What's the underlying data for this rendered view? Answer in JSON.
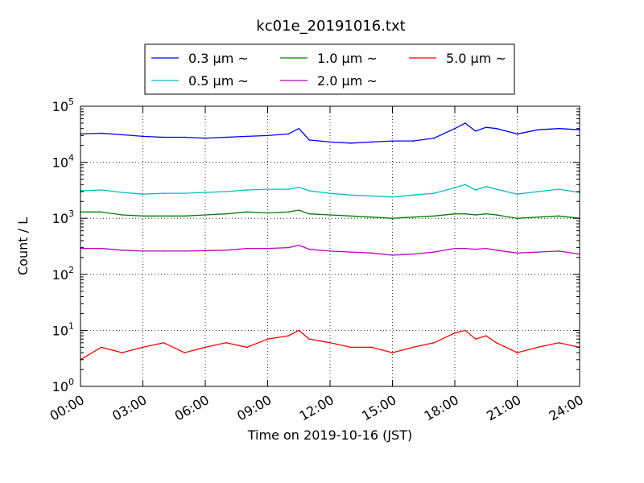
{
  "chart_data": {
    "type": "line",
    "title": "kc01e_20191016.txt",
    "xlabel": "Time on 2019-10-16 (JST)",
    "ylabel": "Count / L",
    "yscale": "log",
    "xlim": [
      "00:00",
      "24:00"
    ],
    "ylim": [
      1,
      100000
    ],
    "x_ticks": [
      "00:00",
      "03:00",
      "06:00",
      "09:00",
      "12:00",
      "15:00",
      "18:00",
      "21:00",
      "24:00"
    ],
    "y_ticks": [
      {
        "base": "10",
        "exp": "0"
      },
      {
        "base": "10",
        "exp": "1"
      },
      {
        "base": "10",
        "exp": "2"
      },
      {
        "base": "10",
        "exp": "3"
      },
      {
        "base": "10",
        "exp": "4"
      },
      {
        "base": "10",
        "exp": "5"
      }
    ],
    "grid": true,
    "legend_position": "top-center",
    "x": [
      "00:00",
      "01:00",
      "02:00",
      "03:00",
      "04:00",
      "05:00",
      "06:00",
      "07:00",
      "08:00",
      "09:00",
      "10:00",
      "10:30",
      "11:00",
      "12:00",
      "13:00",
      "14:00",
      "15:00",
      "16:00",
      "17:00",
      "18:00",
      "18:30",
      "19:00",
      "19:30",
      "20:00",
      "21:00",
      "22:00",
      "23:00",
      "24:00"
    ],
    "series": [
      {
        "name": "0.3 μm ~",
        "color": "#0000ff",
        "values": [
          32000,
          33000,
          31000,
          29000,
          28000,
          28000,
          27000,
          28000,
          29000,
          30000,
          32000,
          40000,
          25000,
          23000,
          22000,
          23000,
          24000,
          24000,
          27000,
          40000,
          50000,
          36000,
          42000,
          40000,
          32000,
          38000,
          40000,
          38000
        ]
      },
      {
        "name": "0.5 μm ~",
        "color": "#00bfbf",
        "values": [
          3100,
          3200,
          2900,
          2700,
          2800,
          2800,
          2900,
          3000,
          3200,
          3300,
          3300,
          3600,
          3100,
          2800,
          2600,
          2500,
          2400,
          2600,
          2800,
          3500,
          4000,
          3200,
          3700,
          3300,
          2700,
          3000,
          3300,
          2900
        ]
      },
      {
        "name": "1.0 μm ~",
        "color": "#008000",
        "values": [
          1300,
          1300,
          1150,
          1100,
          1100,
          1100,
          1150,
          1200,
          1300,
          1250,
          1300,
          1400,
          1200,
          1150,
          1100,
          1050,
          1000,
          1050,
          1100,
          1200,
          1200,
          1150,
          1200,
          1150,
          1000,
          1050,
          1100,
          1000
        ]
      },
      {
        "name": "2.0 μm ~",
        "color": "#bf00bf",
        "values": [
          290,
          290,
          270,
          260,
          260,
          260,
          265,
          270,
          290,
          290,
          300,
          330,
          280,
          260,
          250,
          240,
          220,
          230,
          250,
          290,
          290,
          280,
          290,
          270,
          240,
          250,
          260,
          230
        ]
      },
      {
        "name": "5.0 μm ~",
        "color": "#ff0000",
        "values": [
          3,
          5,
          4,
          5,
          6,
          4,
          5,
          6,
          5,
          7,
          8,
          10,
          7,
          6,
          5,
          5,
          4,
          5,
          6,
          9,
          10,
          7,
          8,
          6,
          4,
          5,
          6,
          5
        ]
      }
    ]
  }
}
